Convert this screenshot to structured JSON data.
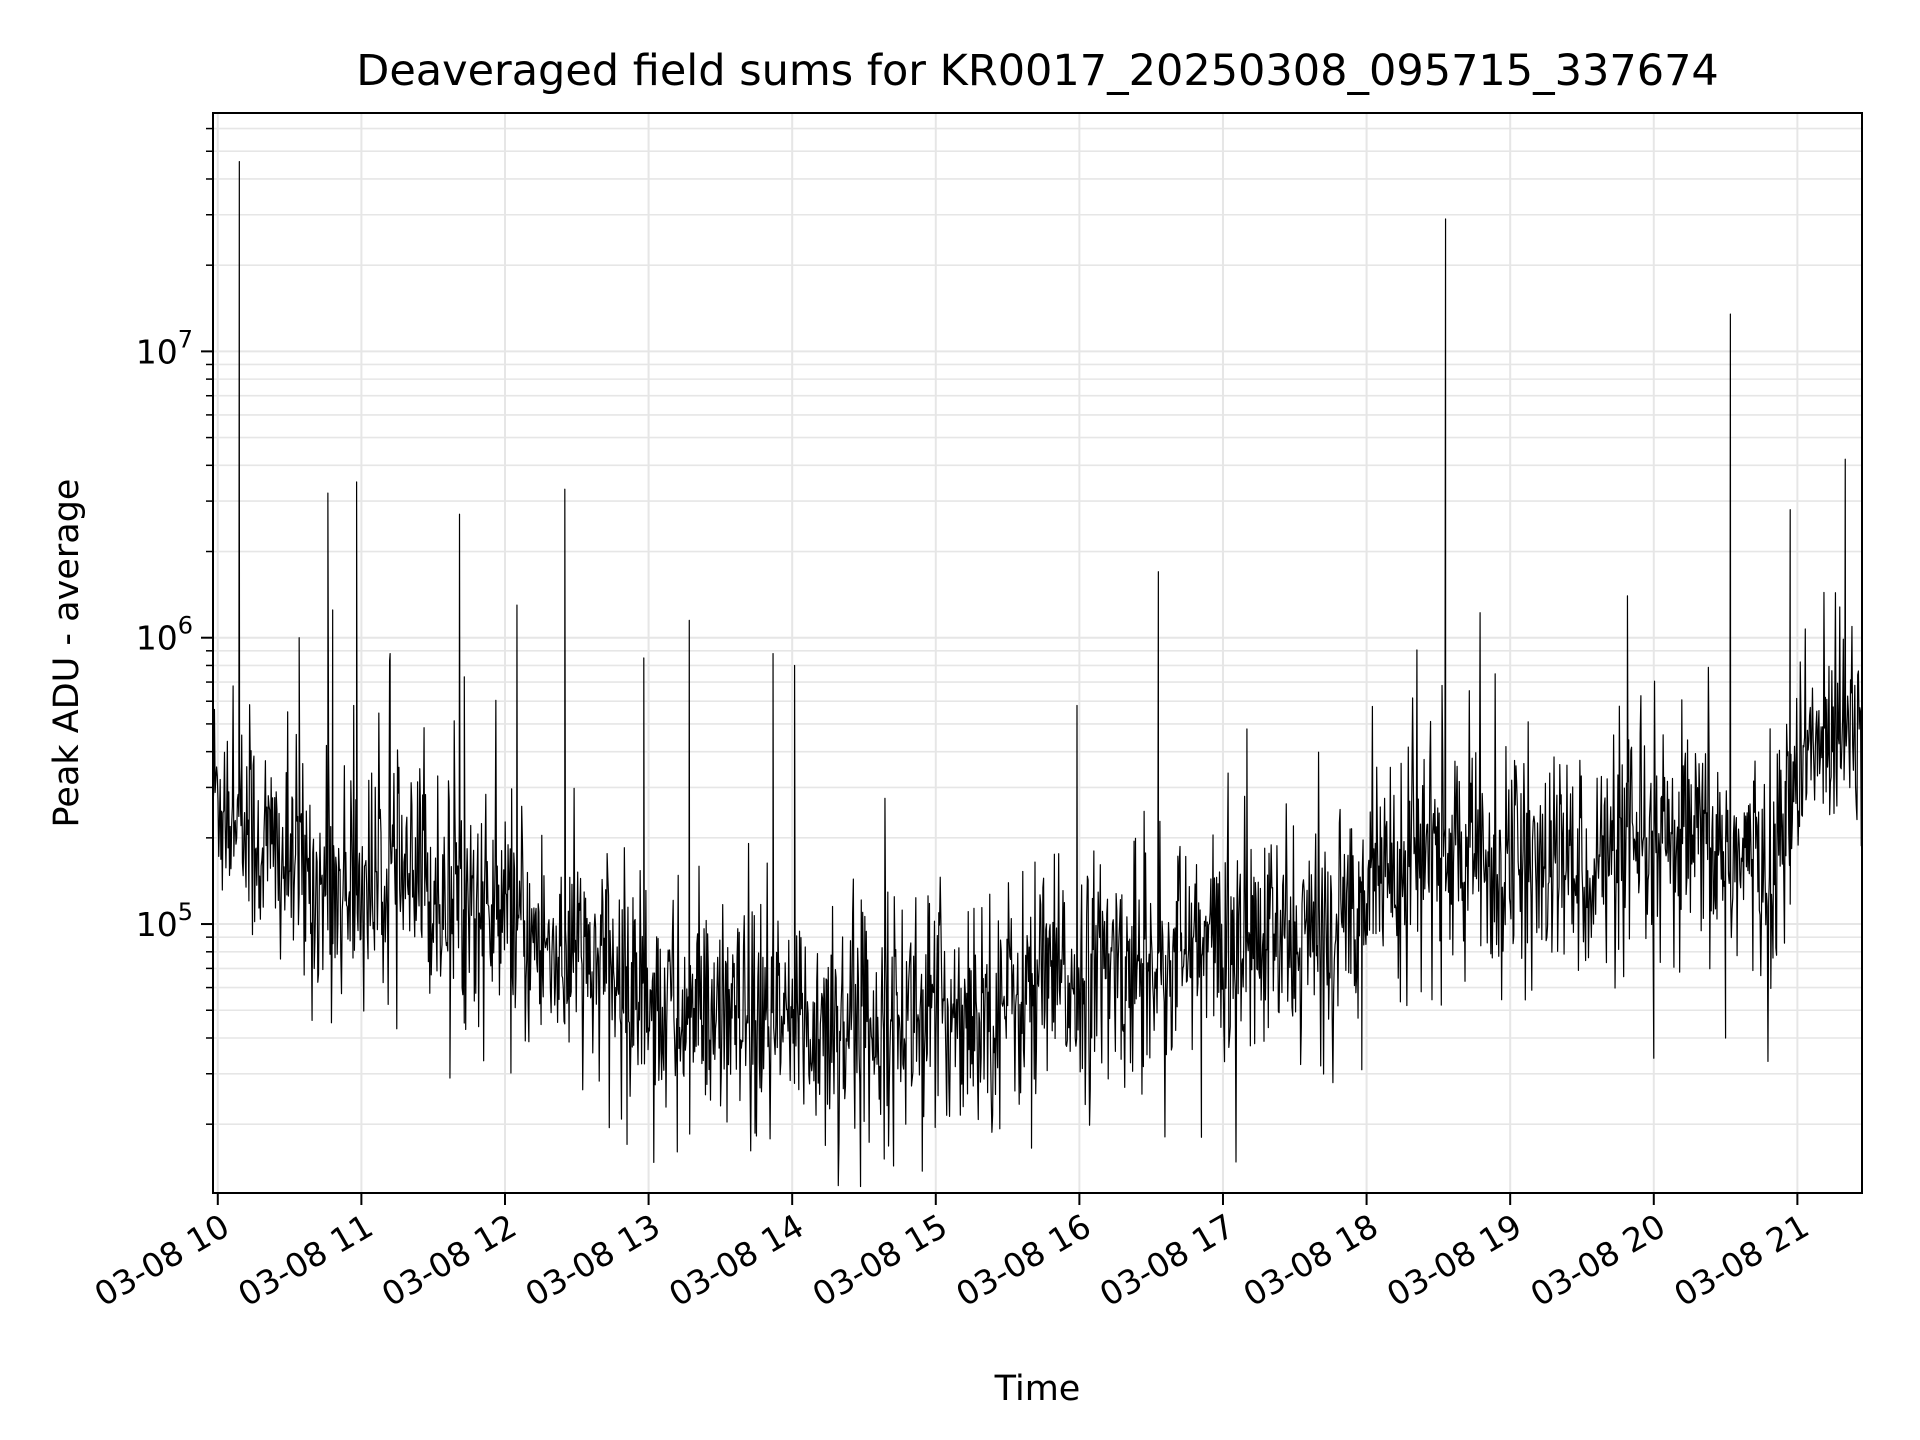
{
  "chart_data": {
    "type": "line",
    "title": "Deaveraged field sums for KR0017_20250308_095715_337674",
    "xlabel": "Time",
    "ylabel": "Peak ADU - average",
    "yscale": "log",
    "ylim": [
      11500,
      68000000
    ],
    "xlim": [
      "2025-03-08T09:58",
      "2025-03-08T21:27"
    ],
    "x_ticks": [
      {
        "value": "2025-03-08T10:00",
        "label": "03-08 10"
      },
      {
        "value": "2025-03-08T11:00",
        "label": "03-08 11"
      },
      {
        "value": "2025-03-08T12:00",
        "label": "03-08 12"
      },
      {
        "value": "2025-03-08T13:00",
        "label": "03-08 13"
      },
      {
        "value": "2025-03-08T14:00",
        "label": "03-08 14"
      },
      {
        "value": "2025-03-08T15:00",
        "label": "03-08 15"
      },
      {
        "value": "2025-03-08T16:00",
        "label": "03-08 16"
      },
      {
        "value": "2025-03-08T17:00",
        "label": "03-08 17"
      },
      {
        "value": "2025-03-08T18:00",
        "label": "03-08 18"
      },
      {
        "value": "2025-03-08T19:00",
        "label": "03-08 19"
      },
      {
        "value": "2025-03-08T20:00",
        "label": "03-08 20"
      },
      {
        "value": "2025-03-08T21:00",
        "label": "03-08 21"
      }
    ],
    "y_ticks": [
      {
        "value": 100000,
        "base": "10",
        "exp": "5"
      },
      {
        "value": 1000000,
        "base": "10",
        "exp": "6"
      },
      {
        "value": 10000000,
        "base": "10",
        "exp": "7"
      }
    ],
    "grid": true,
    "series": [
      {
        "color": "#000000",
        "line_width": 1.2,
        "baseline": [
          {
            "x": "2025-03-08T09:58",
            "y": 300000
          },
          {
            "x": "2025-03-08T10:15",
            "y": 200000
          },
          {
            "x": "2025-03-08T10:45",
            "y": 130000
          },
          {
            "x": "2025-03-08T11:15",
            "y": 140000
          },
          {
            "x": "2025-03-08T11:45",
            "y": 120000
          },
          {
            "x": "2025-03-08T12:15",
            "y": 85000
          },
          {
            "x": "2025-03-08T12:45",
            "y": 65000
          },
          {
            "x": "2025-03-08T13:15",
            "y": 48000
          },
          {
            "x": "2025-03-08T13:45",
            "y": 42000
          },
          {
            "x": "2025-03-08T14:15",
            "y": 45000
          },
          {
            "x": "2025-03-08T14:45",
            "y": 48000
          },
          {
            "x": "2025-03-08T15:15",
            "y": 50000
          },
          {
            "x": "2025-03-08T15:45",
            "y": 60000
          },
          {
            "x": "2025-03-08T16:15",
            "y": 70000
          },
          {
            "x": "2025-03-08T16:45",
            "y": 80000
          },
          {
            "x": "2025-03-08T17:15",
            "y": 85000
          },
          {
            "x": "2025-03-08T17:45",
            "y": 90000
          },
          {
            "x": "2025-03-08T18:05",
            "y": 160000
          },
          {
            "x": "2025-03-08T18:30",
            "y": 180000
          },
          {
            "x": "2025-03-08T19:00",
            "y": 150000
          },
          {
            "x": "2025-03-08T19:30",
            "y": 160000
          },
          {
            "x": "2025-03-08T20:00",
            "y": 170000
          },
          {
            "x": "2025-03-08T20:20",
            "y": 190000
          },
          {
            "x": "2025-03-08T20:50",
            "y": 150000
          },
          {
            "x": "2025-03-08T21:00",
            "y": 320000
          },
          {
            "x": "2025-03-08T21:20",
            "y": 600000
          },
          {
            "x": "2025-03-08T21:27",
            "y": 550000
          }
        ],
        "noise_sd_log10": 0.2,
        "samples_per_hour": 200,
        "spikes": [
          {
            "x": "2025-03-08T10:09",
            "y": 46000000
          },
          {
            "x": "2025-03-08T10:09",
            "y": 4100000
          },
          {
            "x": "2025-03-08T10:34",
            "y": 1000000
          },
          {
            "x": "2025-03-08T10:46",
            "y": 3200000
          },
          {
            "x": "2025-03-08T10:48",
            "y": 1250000
          },
          {
            "x": "2025-03-08T10:58",
            "y": 3500000
          },
          {
            "x": "2025-03-08T11:12",
            "y": 880000
          },
          {
            "x": "2025-03-08T11:41",
            "y": 2700000
          },
          {
            "x": "2025-03-08T11:43",
            "y": 730000
          },
          {
            "x": "2025-03-08T12:05",
            "y": 1300000
          },
          {
            "x": "2025-03-08T12:25",
            "y": 3300000
          },
          {
            "x": "2025-03-08T12:58",
            "y": 850000
          },
          {
            "x": "2025-03-08T13:17",
            "y": 1150000
          },
          {
            "x": "2025-03-08T13:52",
            "y": 880000
          },
          {
            "x": "2025-03-08T14:01",
            "y": 800000
          },
          {
            "x": "2025-03-08T15:59",
            "y": 580000
          },
          {
            "x": "2025-03-08T16:33",
            "y": 1700000
          },
          {
            "x": "2025-03-08T17:10",
            "y": 480000
          },
          {
            "x": "2025-03-08T18:33",
            "y": 29000000
          },
          {
            "x": "2025-03-08T19:49",
            "y": 1400000
          },
          {
            "x": "2025-03-08T20:32",
            "y": 13500000
          },
          {
            "x": "2025-03-08T20:57",
            "y": 2800000
          },
          {
            "x": "2025-03-08T21:20",
            "y": 4200000
          }
        ],
        "dips": [
          {
            "x": "2025-03-08T11:37",
            "y": 29000
          },
          {
            "x": "2025-03-08T13:12",
            "y": 16000
          },
          {
            "x": "2025-03-08T12:51",
            "y": 17000
          },
          {
            "x": "2025-03-08T15:40",
            "y": 16500
          },
          {
            "x": "2025-03-08T16:51",
            "y": 18000
          },
          {
            "x": "2025-03-08T20:00",
            "y": 34000
          },
          {
            "x": "2025-03-08T20:30",
            "y": 40000
          },
          {
            "x": "2025-03-08T17:58",
            "y": 31000
          }
        ]
      }
    ]
  }
}
